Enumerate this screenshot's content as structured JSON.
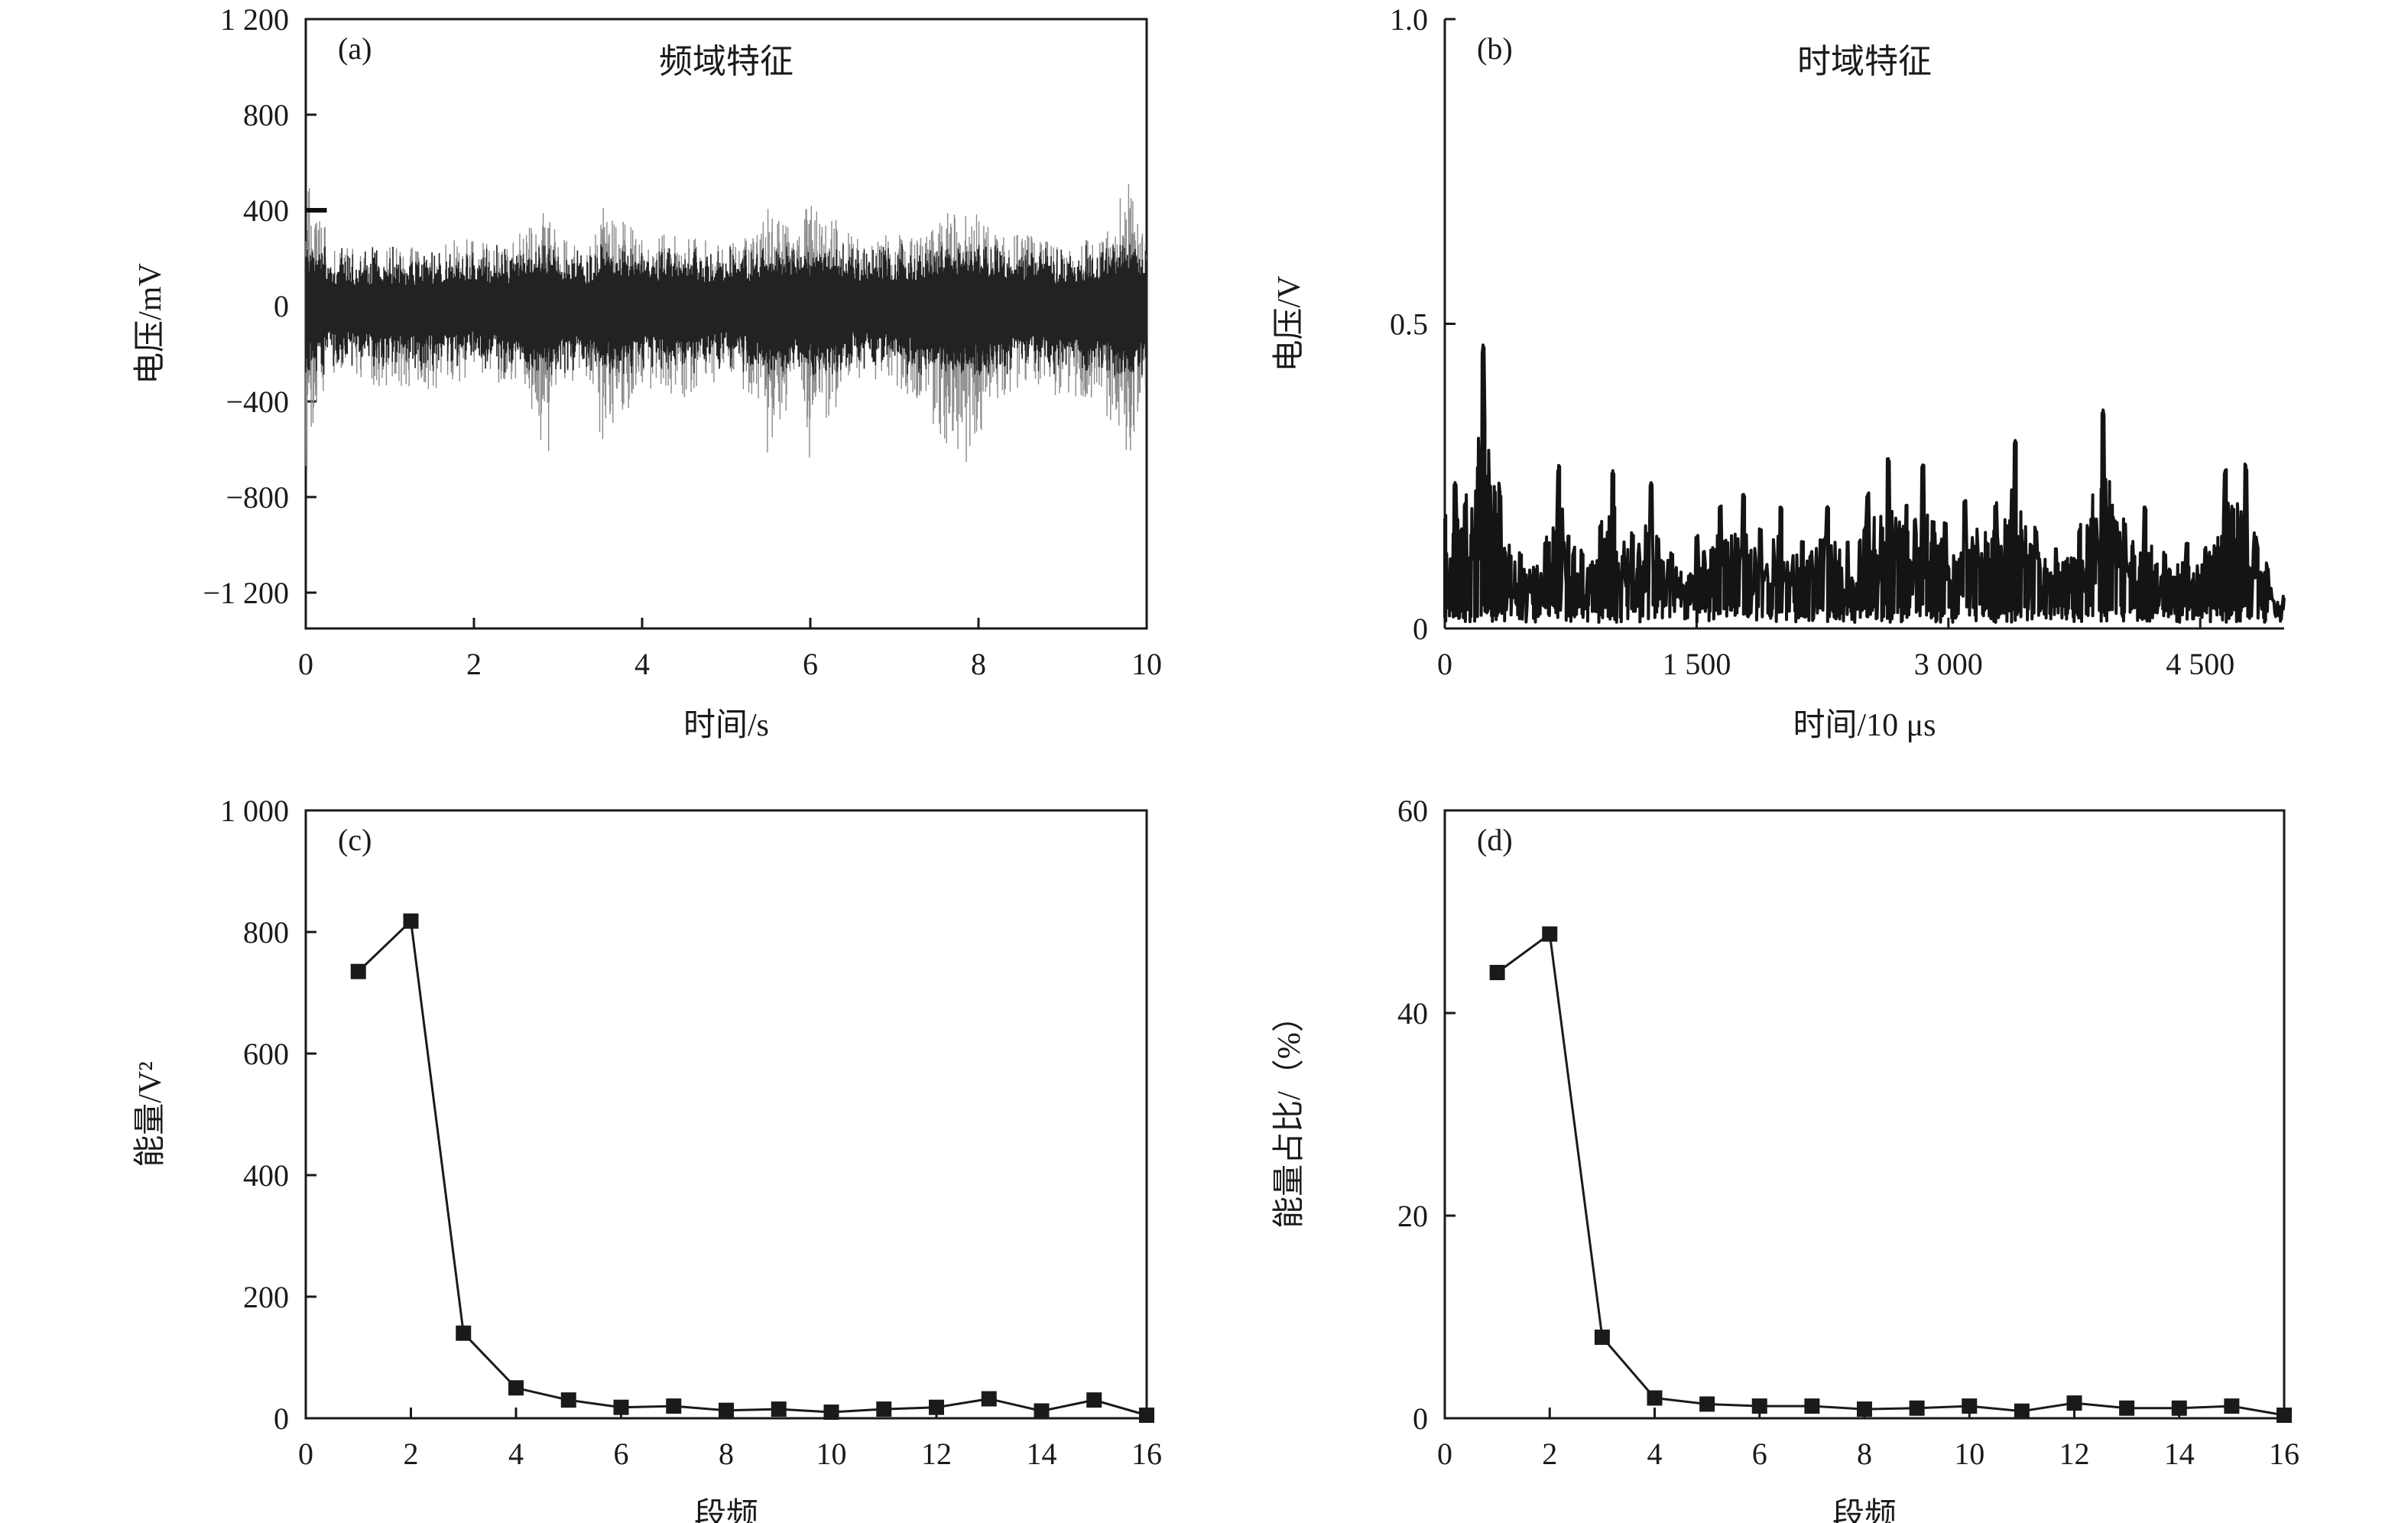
{
  "chart_data": [
    {
      "id": "a",
      "type": "line",
      "panel_label": "(a)",
      "title": "频域特征",
      "xlabel": "时间/s",
      "ylabel": "电压/mV",
      "xlim": [
        0,
        10
      ],
      "ylim": [
        -1350,
        1200
      ],
      "xticks": [
        0,
        2,
        4,
        6,
        8,
        10
      ],
      "xtick_labels": [
        "0",
        "2",
        "4",
        "6",
        "8",
        "10"
      ],
      "yticks": [
        1200,
        800,
        400,
        0,
        -400,
        -800,
        -1200
      ],
      "ytick_labels": [
        "1 200",
        "800",
        "400",
        "0",
        "−400",
        "−800",
        "−1 200"
      ],
      "series": [
        {
          "x": [
            0,
            0.1,
            0.3,
            0.5,
            1.0,
            1.5,
            2.0,
            2.4,
            2.9,
            3.0,
            3.4,
            3.5,
            4.0,
            4.4,
            5.0,
            5.4,
            5.5,
            5.8,
            6.0,
            6.5,
            7.0,
            7.3,
            7.8,
            8.2,
            8.6,
            9.0,
            9.4,
            9.8,
            10.0
          ],
          "y_upper": [
            700,
            500,
            250,
            250,
            250,
            250,
            300,
            250,
            450,
            300,
            250,
            420,
            300,
            300,
            260,
            300,
            450,
            300,
            460,
            300,
            300,
            300,
            450,
            300,
            300,
            250,
            300,
            520,
            300
          ],
          "y_lower": [
            -750,
            -450,
            -280,
            -300,
            -350,
            -350,
            -300,
            -350,
            -620,
            -350,
            -350,
            -600,
            -350,
            -400,
            -300,
            -400,
            -650,
            -350,
            -650,
            -300,
            -350,
            -400,
            -700,
            -400,
            -350,
            -380,
            -400,
            -640,
            -350
          ]
        }
      ]
    },
    {
      "id": "b",
      "type": "line",
      "panel_label": "(b)",
      "title": "时域特征",
      "xlabel": "时间/10 μs",
      "ylabel": "电压/V",
      "xlim": [
        0,
        5000
      ],
      "ylim": [
        0,
        1.0
      ],
      "xticks": [
        0,
        1500,
        3000,
        4500
      ],
      "xtick_labels": [
        "0",
        "1 500",
        "3 000",
        "4 500"
      ],
      "yticks": [
        0,
        0.5,
        1.0
      ],
      "ytick_labels": [
        "0",
        "0.5",
        "1.0"
      ],
      "series": [
        {
          "peaks": [
            [
              0,
              0.18
            ],
            [
              60,
              0.24
            ],
            [
              120,
              0.2
            ],
            [
              230,
              0.47
            ],
            [
              330,
              0.22
            ],
            [
              450,
              0.12
            ],
            [
              600,
              0.14
            ],
            [
              680,
              0.27
            ],
            [
              820,
              0.12
            ],
            [
              930,
              0.17
            ],
            [
              1000,
              0.26
            ],
            [
              1120,
              0.15
            ],
            [
              1230,
              0.24
            ],
            [
              1350,
              0.12
            ],
            [
              1500,
              0.15
            ],
            [
              1640,
              0.2
            ],
            [
              1780,
              0.22
            ],
            [
              1880,
              0.16
            ],
            [
              2000,
              0.2
            ],
            [
              2130,
              0.14
            ],
            [
              2280,
              0.2
            ],
            [
              2400,
              0.14
            ],
            [
              2520,
              0.22
            ],
            [
              2640,
              0.28
            ],
            [
              2750,
              0.2
            ],
            [
              2850,
              0.27
            ],
            [
              2980,
              0.17
            ],
            [
              3100,
              0.21
            ],
            [
              3280,
              0.2
            ],
            [
              3400,
              0.31
            ],
            [
              3520,
              0.16
            ],
            [
              3640,
              0.13
            ],
            [
              3780,
              0.16
            ],
            [
              3920,
              0.36
            ],
            [
              4050,
              0.17
            ],
            [
              4170,
              0.2
            ],
            [
              4290,
              0.12
            ],
            [
              4420,
              0.14
            ],
            [
              4530,
              0.13
            ],
            [
              4650,
              0.26
            ],
            [
              4770,
              0.27
            ],
            [
              4900,
              0.1
            ],
            [
              5000,
              0.05
            ]
          ]
        }
      ]
    },
    {
      "id": "c",
      "type": "line",
      "panel_label": "(c)",
      "title": "",
      "xlabel": "段频",
      "ylabel": "能量/V²",
      "xlim": [
        0,
        16
      ],
      "ylim": [
        0,
        1000
      ],
      "xticks": [
        0,
        2,
        4,
        6,
        8,
        10,
        12,
        14,
        16
      ],
      "xtick_labels": [
        "0",
        "2",
        "4",
        "6",
        "8",
        "10",
        "12",
        "14",
        "16"
      ],
      "yticks": [
        0,
        200,
        400,
        600,
        800,
        1000
      ],
      "ytick_labels": [
        "0",
        "200",
        "400",
        "600",
        "800",
        "1 000"
      ],
      "series": [
        {
          "x": [
            1,
            2,
            3,
            4,
            5,
            6,
            7,
            8,
            9,
            10,
            11,
            12,
            13,
            14,
            15,
            16
          ],
          "y": [
            735,
            818,
            140,
            50,
            30,
            18,
            20,
            13,
            15,
            10,
            15,
            18,
            32,
            12,
            30,
            5
          ]
        }
      ]
    },
    {
      "id": "d",
      "type": "line",
      "panel_label": "(d)",
      "title": "",
      "xlabel": "段频",
      "ylabel": "能量占比/（%）",
      "xlim": [
        0,
        16
      ],
      "ylim": [
        0,
        60
      ],
      "xticks": [
        0,
        2,
        4,
        6,
        8,
        10,
        12,
        14,
        16
      ],
      "xtick_labels": [
        "0",
        "2",
        "4",
        "6",
        "8",
        "10",
        "12",
        "14",
        "16"
      ],
      "yticks": [
        0,
        20,
        40,
        60
      ],
      "ytick_labels": [
        "0",
        "20",
        "40",
        "60"
      ],
      "series": [
        {
          "x": [
            1,
            2,
            3,
            4,
            5,
            6,
            7,
            8,
            9,
            10,
            11,
            12,
            13,
            14,
            15,
            16
          ],
          "y": [
            44,
            47.8,
            8,
            2,
            1.4,
            1.2,
            1.2,
            0.9,
            1.0,
            1.2,
            0.7,
            1.5,
            1.0,
            1.0,
            1.2,
            0.3
          ]
        }
      ]
    }
  ]
}
